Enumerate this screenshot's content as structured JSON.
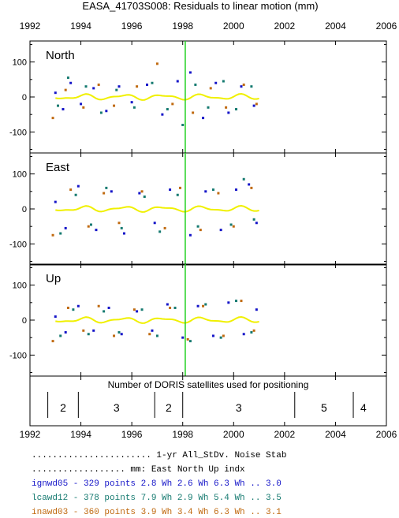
{
  "title": "EASA_41703S008: Residuals to linear motion (mm)",
  "axes": {
    "x_ticks": [
      "1992",
      "1994",
      "1996",
      "1998",
      "2000",
      "2002",
      "2004",
      "2006"
    ],
    "y_ticks": [
      "100",
      "0",
      "-100"
    ]
  },
  "colors": {
    "ign": "#1515c8",
    "lca": "#157a70",
    "ina": "#c06a10",
    "mean": "#f0f000",
    "event": "#20d020"
  },
  "chart_data": {
    "type": "scatter",
    "title": "EASA_41703S008: Residuals to linear motion (mm)",
    "xlim": [
      1992,
      2006
    ],
    "ylim": [
      -160,
      160
    ],
    "event_line_year": 1998.1,
    "panels": [
      {
        "name": "North",
        "series": [
          {
            "name": "ignwd05",
            "data": [
              [
                1993.0,
                12
              ],
              [
                1993.3,
                -35
              ],
              [
                1993.6,
                40
              ],
              [
                1994.0,
                -20
              ],
              [
                1994.5,
                25
              ],
              [
                1995.0,
                -40
              ],
              [
                1995.5,
                30
              ],
              [
                1996.0,
                -15
              ],
              [
                1996.6,
                35
              ],
              [
                1997.2,
                -50
              ],
              [
                1997.8,
                45
              ],
              [
                1998.3,
                70
              ],
              [
                1998.8,
                -60
              ],
              [
                1999.3,
                40
              ],
              [
                1999.8,
                -45
              ],
              [
                2000.3,
                30
              ],
              [
                2000.8,
                -25
              ]
            ]
          },
          {
            "name": "lcawd12",
            "data": [
              [
                1993.1,
                -25
              ],
              [
                1993.5,
                55
              ],
              [
                1994.2,
                30
              ],
              [
                1994.8,
                -45
              ],
              [
                1995.4,
                20
              ],
              [
                1996.1,
                -30
              ],
              [
                1996.8,
                40
              ],
              [
                1997.4,
                -35
              ],
              [
                1998.0,
                -80
              ],
              [
                1998.5,
                35
              ],
              [
                1999.0,
                -30
              ],
              [
                1999.6,
                45
              ],
              [
                2000.1,
                -35
              ],
              [
                2000.7,
                30
              ]
            ]
          },
          {
            "name": "inawd03",
            "data": [
              [
                1992.9,
                -60
              ],
              [
                1993.4,
                20
              ],
              [
                1994.1,
                -30
              ],
              [
                1994.7,
                35
              ],
              [
                1995.3,
                -25
              ],
              [
                1996.2,
                30
              ],
              [
                1997.0,
                95
              ],
              [
                1997.6,
                -20
              ],
              [
                1998.4,
                -45
              ],
              [
                1999.1,
                25
              ],
              [
                1999.7,
                -30
              ],
              [
                2000.4,
                35
              ],
              [
                2000.9,
                -20
              ]
            ]
          }
        ]
      },
      {
        "name": "East",
        "series": [
          {
            "name": "ignwd05",
            "data": [
              [
                1993.0,
                20
              ],
              [
                1993.4,
                -55
              ],
              [
                1993.9,
                65
              ],
              [
                1994.6,
                -60
              ],
              [
                1995.2,
                50
              ],
              [
                1995.7,
                -70
              ],
              [
                1996.3,
                45
              ],
              [
                1996.9,
                -40
              ],
              [
                1997.5,
                55
              ],
              [
                1998.3,
                -75
              ],
              [
                1998.9,
                50
              ],
              [
                1999.5,
                -60
              ],
              [
                2000.1,
                55
              ],
              [
                2000.6,
                70
              ],
              [
                2000.9,
                -40
              ]
            ]
          },
          {
            "name": "lcawd12",
            "data": [
              [
                1993.2,
                -70
              ],
              [
                1993.8,
                40
              ],
              [
                1994.4,
                -45
              ],
              [
                1995.0,
                60
              ],
              [
                1995.6,
                -55
              ],
              [
                1996.5,
                35
              ],
              [
                1997.1,
                -65
              ],
              [
                1997.8,
                40
              ],
              [
                1998.6,
                -50
              ],
              [
                1999.2,
                55
              ],
              [
                1999.9,
                -45
              ],
              [
                2000.4,
                85
              ],
              [
                2000.8,
                -30
              ]
            ]
          },
          {
            "name": "inawd03",
            "data": [
              [
                1992.9,
                -75
              ],
              [
                1993.6,
                55
              ],
              [
                1994.3,
                -50
              ],
              [
                1994.9,
                45
              ],
              [
                1995.5,
                -40
              ],
              [
                1996.4,
                50
              ],
              [
                1997.3,
                -55
              ],
              [
                1997.9,
                60
              ],
              [
                1998.7,
                -60
              ],
              [
                1999.4,
                45
              ],
              [
                2000.0,
                -50
              ],
              [
                2000.7,
                60
              ]
            ]
          }
        ]
      },
      {
        "name": "Up",
        "series": [
          {
            "name": "ignwd05",
            "data": [
              [
                1993.0,
                10
              ],
              [
                1993.4,
                -35
              ],
              [
                1993.9,
                40
              ],
              [
                1994.5,
                -30
              ],
              [
                1995.1,
                35
              ],
              [
                1995.6,
                -40
              ],
              [
                1996.2,
                25
              ],
              [
                1996.8,
                -30
              ],
              [
                1997.4,
                45
              ],
              [
                1998.0,
                -50
              ],
              [
                1998.6,
                40
              ],
              [
                1999.2,
                -45
              ],
              [
                1999.8,
                50
              ],
              [
                2000.4,
                -40
              ],
              [
                2000.9,
                30
              ]
            ]
          },
          {
            "name": "lcawd12",
            "data": [
              [
                1993.2,
                -45
              ],
              [
                1993.7,
                30
              ],
              [
                1994.3,
                -40
              ],
              [
                1994.9,
                25
              ],
              [
                1995.5,
                -35
              ],
              [
                1996.4,
                30
              ],
              [
                1997.0,
                -45
              ],
              [
                1997.7,
                35
              ],
              [
                1998.3,
                -60
              ],
              [
                1998.9,
                45
              ],
              [
                1999.5,
                -50
              ],
              [
                2000.1,
                55
              ],
              [
                2000.7,
                -35
              ]
            ]
          },
          {
            "name": "inawd03",
            "data": [
              [
                1992.9,
                -60
              ],
              [
                1993.5,
                35
              ],
              [
                1994.1,
                -30
              ],
              [
                1994.7,
                40
              ],
              [
                1995.3,
                -45
              ],
              [
                1996.1,
                30
              ],
              [
                1996.7,
                -40
              ],
              [
                1997.5,
                35
              ],
              [
                1998.2,
                -55
              ],
              [
                1998.8,
                40
              ],
              [
                1999.6,
                -45
              ],
              [
                2000.3,
                55
              ],
              [
                2000.8,
                -30
              ]
            ]
          }
        ]
      }
    ],
    "satellites": {
      "label": "Number of DORIS satellites used for positioning",
      "segments": [
        {
          "start": 1992.7,
          "end": 1993.9,
          "count": "2"
        },
        {
          "start": 1993.9,
          "end": 1996.9,
          "count": "3"
        },
        {
          "start": 1996.9,
          "end": 1998.0,
          "count": "2"
        },
        {
          "start": 1998.0,
          "end": 2002.4,
          "count": "3"
        },
        {
          "start": 2002.4,
          "end": 2004.7,
          "count": "5"
        },
        {
          "start": 2004.7,
          "end": 2005.5,
          "count": "4"
        }
      ]
    }
  },
  "stats_table": {
    "header1": ".......................  1-yr  All_StDv.  Noise      Stab",
    "header2": "..................  mm:   East    North    Up        indx",
    "rows": [
      {
        "text": "ignwd05 - 329 points   2.8 Wh   2.6 Wh   6.3 Wh ..  3.0",
        "color_key": "ign"
      },
      {
        "text": "lcawd12 - 378 points   7.9 Wh   2.9 Wh   5.4 Wh ..  3.5",
        "color_key": "lca"
      },
      {
        "text": "inawd03 - 360 points   3.9 Wh   3.4 Wh   6.3 Wh ..  3.1",
        "color_key": "ina"
      }
    ]
  }
}
